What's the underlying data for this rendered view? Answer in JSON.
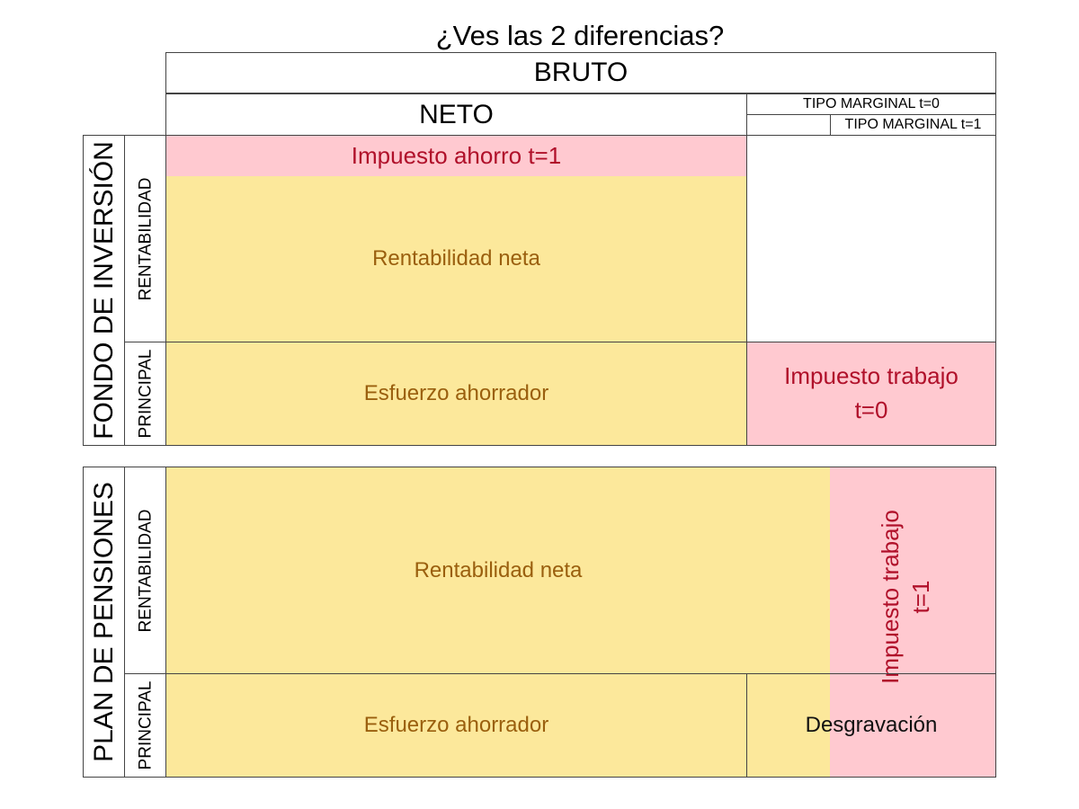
{
  "title": "¿Ves las 2 diferencias?",
  "header": {
    "bruto": "BRUTO",
    "neto": "NETO",
    "tipo_marginal_t0": "TIPO MARGINAL t=0",
    "tipo_marginal_t1": "TIPO MARGINAL t=1"
  },
  "fondo": {
    "label": "FONDO DE INVERSIÓN",
    "row_rentabilidad": "RENTABILIDAD",
    "row_principal": "PRINCIPAL",
    "impuesto_ahorro": "Impuesto ahorro t=1",
    "rentabilidad_neta": "Rentabilidad neta",
    "esfuerzo_ahorrador": "Esfuerzo ahorrador",
    "impuesto_trabajo_line1": "Impuesto trabajo",
    "impuesto_trabajo_line2": "t=0"
  },
  "plan": {
    "label": "PLAN DE PENSIONES",
    "row_rentabilidad": "RENTABILIDAD",
    "row_principal": "PRINCIPAL",
    "rentabilidad_neta": "Rentabilidad neta",
    "esfuerzo_ahorrador": "Esfuerzo ahorrador",
    "impuesto_trabajo_line1": "Impuesto trabajo",
    "impuesto_trabajo_line2": "t=1",
    "desgravacion": "Desgravación"
  },
  "colors": {
    "yellow": "#fce89b",
    "pink": "#ffc9d0",
    "brown_text": "#9a5f0e",
    "red_text": "#b0102a"
  }
}
